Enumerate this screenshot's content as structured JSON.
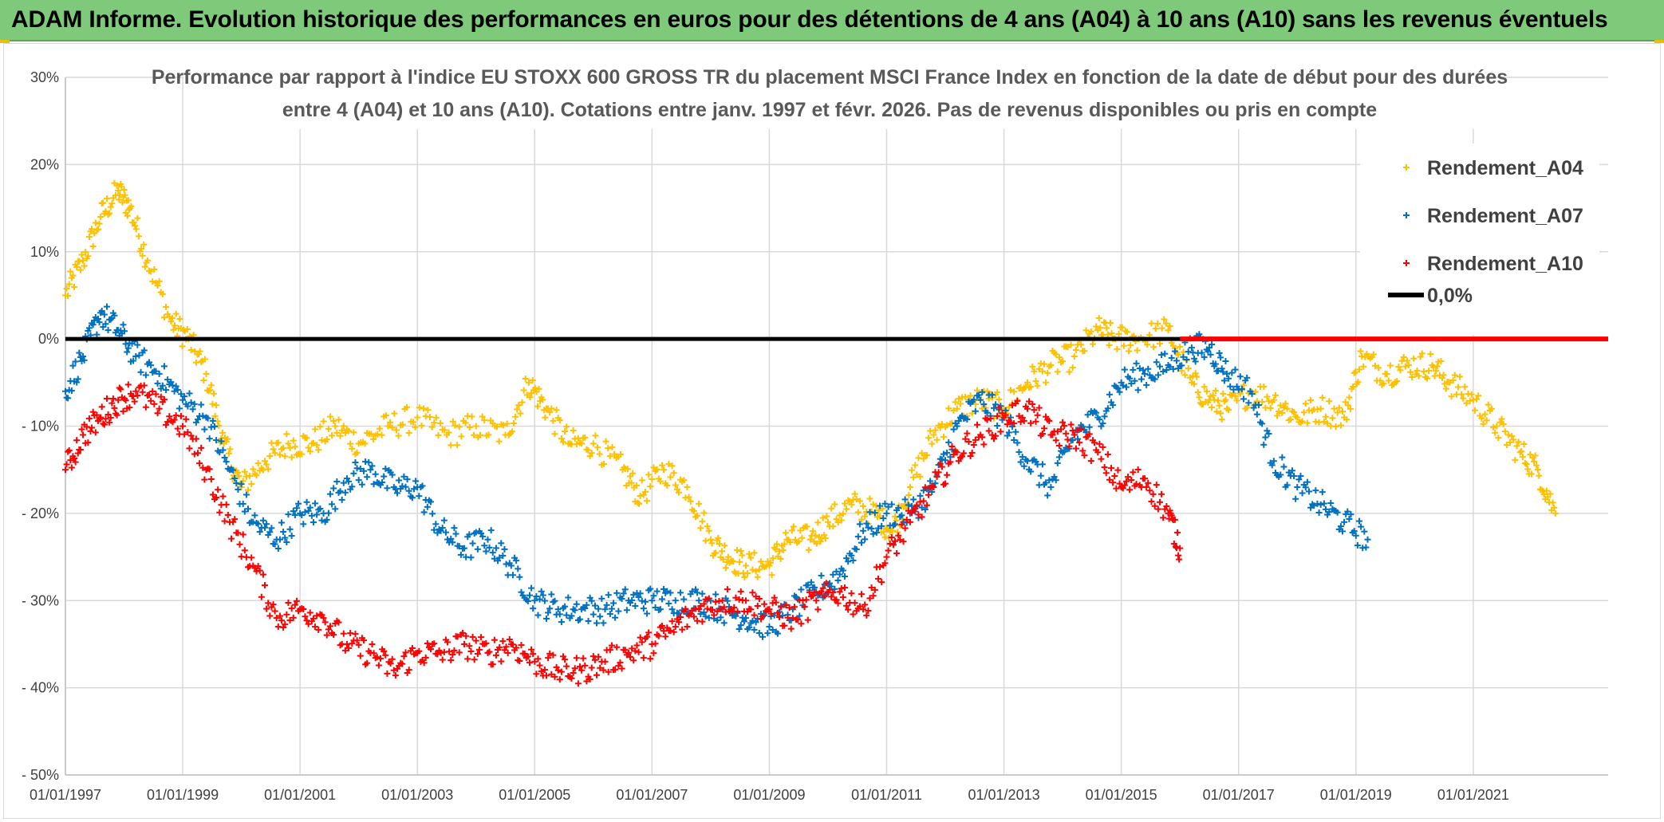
{
  "banner": {
    "title": "ADAM Informe. Evolution historique des performances en euros pour des détentions de 4 ans (A04) à 10 ans (A10) sans les revenus éventuels",
    "background_color": "#7ec97a"
  },
  "chart_data": {
    "type": "scatter",
    "title_line1": "Performance par rapport à l'indice EU STOXX 600 GROSS TR  du placement MSCI France Index en fonction de la date de début pour des durées",
    "title_line2": "entre 4 (A04) et 10 ans (A10). Cotations entre janv. 1997 et févr. 2026. Pas de revenus disponibles ou pris en compte",
    "xlabel": "",
    "ylabel": "",
    "xlim": [
      1997.0,
      2023.3
    ],
    "ylim": [
      -50,
      30
    ],
    "x_ticks": [
      1997,
      1999,
      2001,
      2003,
      2005,
      2007,
      2009,
      2011,
      2013,
      2015,
      2017,
      2019,
      2021
    ],
    "x_tick_labels": [
      "01/01/1997",
      "01/01/1999",
      "01/01/2001",
      "01/01/2003",
      "01/01/2005",
      "01/01/2007",
      "01/01/2009",
      "01/01/2011",
      "01/01/2013",
      "01/01/2015",
      "01/01/2017",
      "01/01/2019",
      "01/01/2021"
    ],
    "y_ticks": [
      30,
      20,
      10,
      0,
      -10,
      -20,
      -30,
      -40,
      -50
    ],
    "y_tick_labels": [
      "30%",
      "20%",
      "10%",
      "0%",
      "- 10%",
      "- 20%",
      "- 30%",
      "- 40%",
      "- 50%"
    ],
    "grid": true,
    "legend_position": "top-right",
    "series": [
      {
        "name": "Rendement_A04",
        "color": "#ffc000",
        "marker": "plus",
        "x": [
          1997.0,
          1997.3,
          1997.6,
          1997.9,
          1998.1,
          1998.4,
          1998.8,
          1999.1,
          1999.4,
          1999.7,
          2000.0,
          2000.4,
          2000.8,
          2001.2,
          2001.6,
          2002.0,
          2002.5,
          2003.0,
          2003.5,
          2004.0,
          2004.5,
          2004.9,
          2005.2,
          2005.6,
          2006.0,
          2006.5,
          2006.8,
          2007.2,
          2007.6,
          2008.0,
          2008.3,
          2008.6,
          2009.0,
          2009.3,
          2009.7,
          2010.0,
          2010.4,
          2010.8,
          2011.1,
          2011.4,
          2011.8,
          2012.2,
          2012.6,
          2013.0,
          2013.4,
          2013.8,
          2014.2,
          2014.6,
          2014.9,
          2015.3,
          2015.8,
          2016.2,
          2016.5,
          2016.8,
          2017.2,
          2017.6,
          2018.0,
          2018.4,
          2018.8,
          2019.1,
          2019.5,
          2019.9,
          2020.3,
          2020.6,
          2021.0,
          2021.4,
          2021.8,
          2022.1,
          2022.4
        ],
        "y": [
          5,
          9,
          14,
          17,
          15,
          9,
          2,
          0,
          -4,
          -12,
          -17,
          -14,
          -12,
          -12,
          -10,
          -12,
          -10,
          -9,
          -11,
          -10,
          -11,
          -5,
          -8,
          -12,
          -12,
          -15,
          -18,
          -15,
          -17,
          -23,
          -25,
          -26,
          -26,
          -23,
          -23,
          -21,
          -19,
          -20,
          -22,
          -17,
          -11,
          -8,
          -7,
          -8,
          -5,
          -3,
          -2,
          1,
          0,
          0,
          1,
          -5,
          -7,
          -8,
          -6,
          -7,
          -9,
          -8,
          -9,
          -2,
          -4,
          -3,
          -3,
          -5,
          -7,
          -10,
          -13,
          -15,
          -20
        ]
      },
      {
        "name": "Rendement_A07",
        "color": "#0070c0",
        "marker": "plus",
        "x": [
          1997.0,
          1997.3,
          1997.6,
          1997.9,
          1998.2,
          1998.6,
          1999.0,
          1999.4,
          1999.8,
          2000.2,
          2000.6,
          2001.0,
          2001.4,
          2001.8,
          2002.2,
          2002.6,
          2003.0,
          2003.4,
          2003.8,
          2004.2,
          2004.6,
          2005.0,
          2005.4,
          2005.8,
          2006.2,
          2006.6,
          2007.0,
          2007.4,
          2007.8,
          2008.2,
          2008.6,
          2009.0,
          2009.4,
          2009.8,
          2010.2,
          2010.6,
          2011.0,
          2011.4,
          2011.8,
          2012.2,
          2012.6,
          2013.0,
          2013.4,
          2013.8,
          2014.2,
          2014.6,
          2015.0,
          2015.4,
          2015.8,
          2016.2,
          2016.5,
          2016.8,
          2017.2,
          2017.6,
          2018.0,
          2018.4,
          2018.8,
          2019.2
        ],
        "y": [
          -6,
          -2,
          3,
          1,
          -2,
          -4,
          -7,
          -9,
          -15,
          -21,
          -23,
          -20,
          -20,
          -16,
          -15,
          -17,
          -17,
          -22,
          -24,
          -23,
          -26,
          -30,
          -31,
          -31,
          -31,
          -30,
          -30,
          -30,
          -30,
          -31,
          -32,
          -33,
          -31,
          -29,
          -27,
          -22,
          -20,
          -20,
          -17,
          -10,
          -7,
          -9,
          -14,
          -17,
          -11,
          -9,
          -5,
          -4,
          -3,
          -1,
          -1,
          -4,
          -6,
          -14,
          -17,
          -19,
          -21,
          -23
        ]
      },
      {
        "name": "Rendement_A10",
        "color": "#ff0000",
        "marker": "plus",
        "x": [
          1997.0,
          1997.3,
          1997.6,
          1997.9,
          1998.2,
          1998.6,
          1999.0,
          1999.4,
          1999.8,
          2000.2,
          2000.6,
          2001.0,
          2001.4,
          2001.8,
          2002.2,
          2002.6,
          2003.0,
          2003.4,
          2003.8,
          2004.2,
          2004.6,
          2005.0,
          2005.4,
          2005.8,
          2006.2,
          2006.6,
          2007.0,
          2007.4,
          2007.8,
          2008.2,
          2008.6,
          2009.0,
          2009.4,
          2009.8,
          2010.2,
          2010.6,
          2011.0,
          2011.4,
          2011.8,
          2012.2,
          2012.6,
          2013.0,
          2013.4,
          2013.8,
          2014.2,
          2014.6,
          2015.0,
          2015.4,
          2015.8,
          2016.0
        ],
        "y": [
          -15,
          -11,
          -9,
          -7,
          -6,
          -8,
          -10,
          -15,
          -21,
          -26,
          -32,
          -31,
          -32,
          -35,
          -36,
          -38,
          -36,
          -36,
          -35,
          -36,
          -35,
          -37,
          -38,
          -38,
          -37,
          -36,
          -35,
          -33,
          -31,
          -30,
          -30,
          -31,
          -32,
          -30,
          -29,
          -31,
          -25,
          -21,
          -17,
          -13,
          -11,
          -9,
          -8,
          -11,
          -11,
          -13,
          -17,
          -16,
          -20,
          -24
        ]
      },
      {
        "name": "0,0%",
        "color": "#000000",
        "marker": "line",
        "x": [
          1997.0,
          2023.3
        ],
        "y": [
          0,
          0
        ]
      }
    ],
    "zero_red_segment": {
      "x": [
        2016.0,
        2023.3
      ],
      "y": [
        0,
        0
      ],
      "color": "#ff0000"
    }
  }
}
